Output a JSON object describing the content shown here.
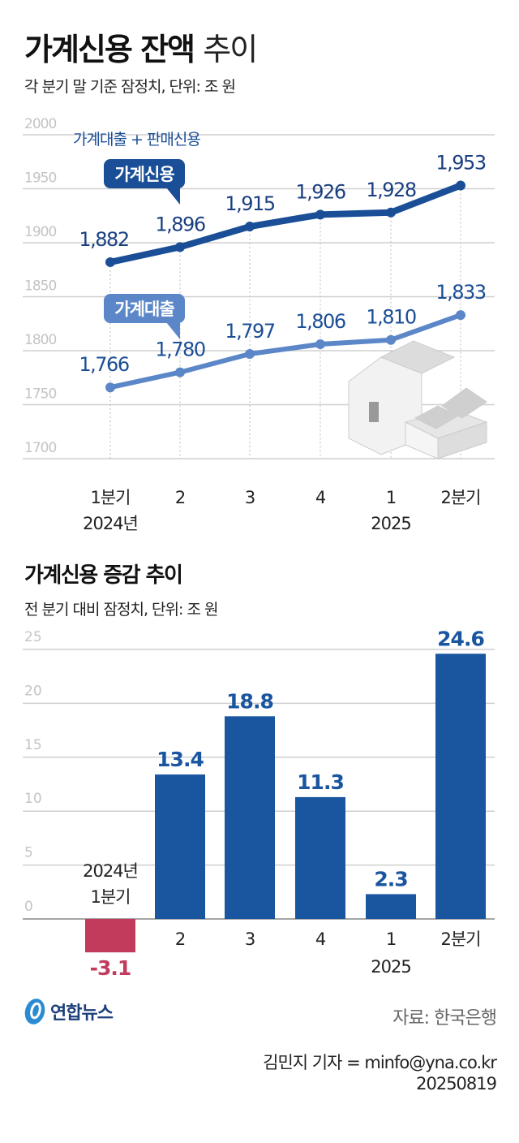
{
  "chart_data": [
    {
      "type": "line",
      "title": "가계신용 잔액 추이",
      "title_bold": "가계신용 잔액",
      "title_light": "추이",
      "subtitle": "각 분기 말 기준 잠정치, 단위: 조 원",
      "categories": [
        "1분기",
        "2",
        "3",
        "4",
        "1",
        "2분기"
      ],
      "category_years": [
        "2024년",
        "",
        "",
        "",
        "2025",
        ""
      ],
      "yticks": [
        2000,
        1950,
        1900,
        1850,
        1800,
        1750,
        1700
      ],
      "ylim": [
        1700,
        2000
      ],
      "grid": true,
      "annotation": "가계대출 + 판매신용",
      "series": [
        {
          "name": "가계신용",
          "values": [
            1882,
            1896,
            1915,
            1926,
            1928,
            1953
          ],
          "labels": [
            "1,882",
            "1,896",
            "1,915",
            "1,926",
            "1,928",
            "1,953"
          ],
          "color": "#1a4e96"
        },
        {
          "name": "가계대출",
          "values": [
            1766,
            1780,
            1797,
            1806,
            1810,
            1833
          ],
          "labels": [
            "1,766",
            "1,780",
            "1,797",
            "1,806",
            "1,810",
            "1,833"
          ],
          "color": "#5b87c8"
        }
      ]
    },
    {
      "type": "bar",
      "title": "가계신용 증감 추이",
      "subtitle": "전 분기 대비 잠정치, 단위: 조 원",
      "categories": [
        "1분기",
        "2",
        "3",
        "4",
        "1",
        "2분기"
      ],
      "category_years": [
        "2024년",
        "",
        "",
        "",
        "2025",
        ""
      ],
      "values": [
        -3.1,
        13.4,
        18.8,
        11.3,
        2.3,
        24.6
      ],
      "labels": [
        "-3.1",
        "13.4",
        "18.8",
        "11.3",
        "2.3",
        "24.6"
      ],
      "yticks": [
        25,
        20,
        15,
        10,
        5,
        0
      ],
      "ylim": [
        -3.1,
        25
      ],
      "grid": true,
      "colors": {
        "positive": "#1a55a0",
        "negative": "#c23b5c"
      }
    }
  ],
  "footer": {
    "logo": "연합뉴스",
    "source": "자료: 한국은행",
    "byline": "김민지 기자 = minfo@yna.co.kr",
    "date": "20250819"
  }
}
